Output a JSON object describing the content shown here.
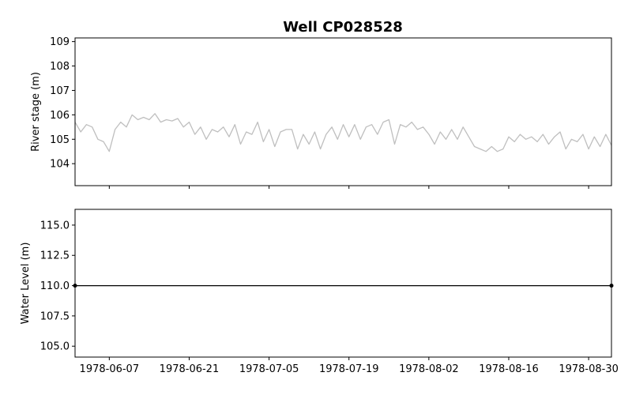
{
  "title": "Well CP028528",
  "chart_data": [
    {
      "type": "line",
      "title": "Well CP028528",
      "xlabel": "",
      "ylabel": "River stage (m)",
      "xlim": [
        "1978-06-01",
        "1978-09-03"
      ],
      "ylim": [
        103.1,
        109.15
      ],
      "yticks": [
        104,
        105,
        106,
        107,
        108,
        109
      ],
      "xticks": [
        "1978-06-07",
        "1978-06-21",
        "1978-07-05",
        "1978-07-19",
        "1978-08-02",
        "1978-08-16",
        "1978-08-30"
      ],
      "show_xtick_labels": false,
      "series": [
        {
          "color": "#bfbfbf",
          "x": [
            "1978-06-01",
            "1978-06-02",
            "1978-06-03",
            "1978-06-04",
            "1978-06-05",
            "1978-06-06",
            "1978-06-07",
            "1978-06-08",
            "1978-06-09",
            "1978-06-10",
            "1978-06-11",
            "1978-06-12",
            "1978-06-13",
            "1978-06-14",
            "1978-06-15",
            "1978-06-16",
            "1978-06-17",
            "1978-06-18",
            "1978-06-19",
            "1978-06-20",
            "1978-06-21",
            "1978-06-22",
            "1978-06-23",
            "1978-06-24",
            "1978-06-25",
            "1978-06-26",
            "1978-06-27",
            "1978-06-28",
            "1978-06-29",
            "1978-06-30",
            "1978-07-01",
            "1978-07-02",
            "1978-07-03",
            "1978-07-04",
            "1978-07-05",
            "1978-07-06",
            "1978-07-07",
            "1978-07-08",
            "1978-07-09",
            "1978-07-10",
            "1978-07-11",
            "1978-07-12",
            "1978-07-13",
            "1978-07-14",
            "1978-07-15",
            "1978-07-16",
            "1978-07-17",
            "1978-07-18",
            "1978-07-19",
            "1978-07-20",
            "1978-07-21",
            "1978-07-22",
            "1978-07-23",
            "1978-07-24",
            "1978-07-25",
            "1978-07-26",
            "1978-07-27",
            "1978-07-28",
            "1978-07-29",
            "1978-07-30",
            "1978-07-31",
            "1978-08-01",
            "1978-08-02",
            "1978-08-03",
            "1978-08-04",
            "1978-08-05",
            "1978-08-06",
            "1978-08-07",
            "1978-08-08",
            "1978-08-09",
            "1978-08-10",
            "1978-08-11",
            "1978-08-12",
            "1978-08-13",
            "1978-08-14",
            "1978-08-15",
            "1978-08-16",
            "1978-08-17",
            "1978-08-18",
            "1978-08-19",
            "1978-08-20",
            "1978-08-21",
            "1978-08-22",
            "1978-08-23",
            "1978-08-24",
            "1978-08-25",
            "1978-08-26",
            "1978-08-27",
            "1978-08-28",
            "1978-08-29",
            "1978-08-30",
            "1978-08-31",
            "1978-09-01",
            "1978-09-02",
            "1978-09-03"
          ],
          "y": [
            105.7,
            105.3,
            105.6,
            105.5,
            105.0,
            104.9,
            104.5,
            105.4,
            105.7,
            105.5,
            106.0,
            105.8,
            105.9,
            105.8,
            106.05,
            105.7,
            105.8,
            105.75,
            105.85,
            105.5,
            105.7,
            105.2,
            105.5,
            105.0,
            105.4,
            105.3,
            105.5,
            105.1,
            105.6,
            104.8,
            105.3,
            105.2,
            105.7,
            104.9,
            105.4,
            104.7,
            105.3,
            105.4,
            105.4,
            104.6,
            105.2,
            104.8,
            105.3,
            104.6,
            105.2,
            105.5,
            105.0,
            105.6,
            105.1,
            105.6,
            105.0,
            105.5,
            105.6,
            105.2,
            105.7,
            105.8,
            104.8,
            105.6,
            105.5,
            105.7,
            105.4,
            105.5,
            105.2,
            104.8,
            105.3,
            105.0,
            105.4,
            105.0,
            105.5,
            105.1,
            104.7,
            104.6,
            104.5,
            104.7,
            104.5,
            104.6,
            105.1,
            104.9,
            105.2,
            105.0,
            105.1,
            104.9,
            105.2,
            104.8,
            105.1,
            105.3,
            104.6,
            105.0,
            104.9,
            105.2,
            104.6,
            105.1,
            104.7,
            105.2,
            104.75
          ]
        }
      ]
    },
    {
      "type": "line",
      "title": "",
      "xlabel": "",
      "ylabel": "Water Level (m)",
      "xlim": [
        "1978-06-01",
        "1978-09-03"
      ],
      "ylim": [
        104.1,
        116.3
      ],
      "yticks": [
        105.0,
        107.5,
        110.0,
        112.5,
        115.0
      ],
      "ytick_labels": [
        "105.0",
        "107.5",
        "110.0",
        "112.5",
        "115.0"
      ],
      "xticks": [
        "1978-06-07",
        "1978-06-21",
        "1978-07-05",
        "1978-07-19",
        "1978-08-02",
        "1978-08-16",
        "1978-08-30"
      ],
      "xtick_labels": [
        "1978-06-07",
        "1978-06-21",
        "1978-07-05",
        "1978-07-19",
        "1978-08-02",
        "1978-08-16",
        "1978-08-30"
      ],
      "show_xtick_labels": true,
      "series": [
        {
          "color": "#000000",
          "markers": true,
          "x": [
            "1978-06-01",
            "1978-09-03"
          ],
          "y": [
            110.0,
            110.0
          ]
        }
      ]
    }
  ]
}
